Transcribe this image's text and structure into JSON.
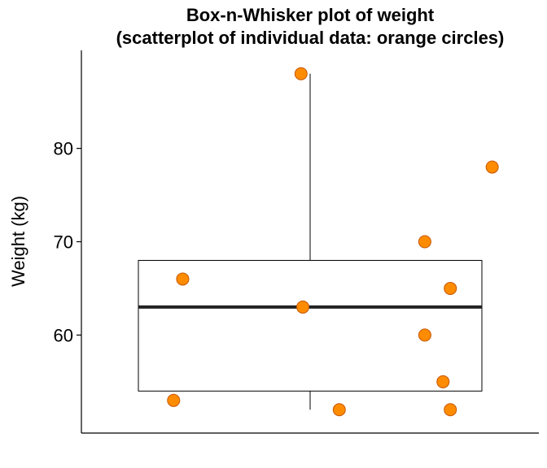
{
  "chart_data": {
    "type": "box",
    "title": "Box-n-Whisker plot of weight",
    "subtitle": "(scatterplot of individual data: orange circles)",
    "xlabel": "",
    "ylabel": "Weight (kg)",
    "ylim": [
      49.5,
      90.5
    ],
    "yticks": [
      "60",
      "70",
      "80"
    ],
    "yticks_values": [
      60,
      70,
      80
    ],
    "grid": false,
    "box": {
      "min": 52,
      "q1": 54,
      "median": 63,
      "q3": 68,
      "max": 88
    },
    "points_color": "#FF8C00",
    "points_stroke": "#C45500",
    "points": [
      {
        "jitter": -0.75,
        "y": 53
      },
      {
        "jitter": -0.7,
        "y": 66
      },
      {
        "jitter": -0.05,
        "y": 88
      },
      {
        "jitter": -0.04,
        "y": 63
      },
      {
        "jitter": 0.16,
        "y": 52
      },
      {
        "jitter": 0.63,
        "y": 70
      },
      {
        "jitter": 0.63,
        "y": 60
      },
      {
        "jitter": 0.73,
        "y": 55
      },
      {
        "jitter": 0.77,
        "y": 65
      },
      {
        "jitter": 0.77,
        "y": 52
      },
      {
        "jitter": 1.0,
        "y": 78
      }
    ]
  }
}
